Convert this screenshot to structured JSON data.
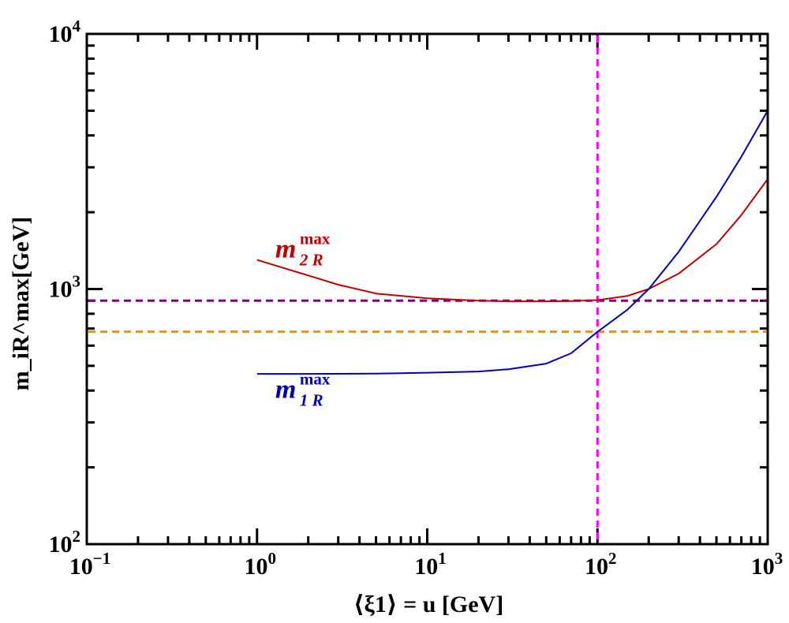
{
  "chart_data": {
    "type": "line",
    "x_scale": "log",
    "y_scale": "log",
    "xlim": [
      0.1,
      1000
    ],
    "ylim": [
      100,
      10000
    ],
    "xlabel": "⟨ξ1⟩ = u [GeV]",
    "ylabel": "m_iR^max[GeV]",
    "x_ticks": [
      {
        "value": 0.1,
        "base": "10",
        "exp": "−1"
      },
      {
        "value": 1,
        "base": "10",
        "exp": "0"
      },
      {
        "value": 10,
        "base": "10",
        "exp": "1"
      },
      {
        "value": 100,
        "base": "10",
        "exp": "2"
      },
      {
        "value": 1000,
        "base": "10",
        "exp": "3"
      }
    ],
    "y_ticks": [
      {
        "value": 100,
        "base": "10",
        "exp": "2"
      },
      {
        "value": 1000,
        "base": "10",
        "exp": "3"
      },
      {
        "value": 10000,
        "base": "10",
        "exp": "4"
      }
    ],
    "series": [
      {
        "name": "m_2R^max",
        "color": "#c00000",
        "label": {
          "base": "m",
          "sub": "2 R",
          "sup": "max"
        },
        "x": [
          1,
          2,
          3,
          5,
          10,
          20,
          30,
          50,
          70,
          100,
          150,
          200,
          300,
          500,
          700,
          1000
        ],
        "y": [
          1300,
          1130,
          1040,
          960,
          920,
          900,
          895,
          895,
          897,
          905,
          940,
          1000,
          1150,
          1500,
          1950,
          2700
        ]
      },
      {
        "name": "m_1R^max",
        "color": "#0000b0",
        "label": {
          "base": "m",
          "sub": "1 R",
          "sup": "max"
        },
        "x": [
          1,
          2,
          5,
          10,
          20,
          30,
          50,
          70,
          100,
          150,
          200,
          300,
          500,
          700,
          1000
        ],
        "y": [
          465,
          465,
          466,
          470,
          475,
          485,
          510,
          560,
          680,
          830,
          1000,
          1400,
          2300,
          3300,
          5000
        ]
      }
    ],
    "reference_lines": [
      {
        "orientation": "horizontal",
        "value": 900,
        "color": "#800080",
        "style": "dashed"
      },
      {
        "orientation": "horizontal",
        "value": 680,
        "color": "#ff8c00",
        "style": "dashed"
      },
      {
        "orientation": "vertical",
        "value": 100,
        "color": "#ff00ff",
        "style": "dashed"
      }
    ]
  }
}
